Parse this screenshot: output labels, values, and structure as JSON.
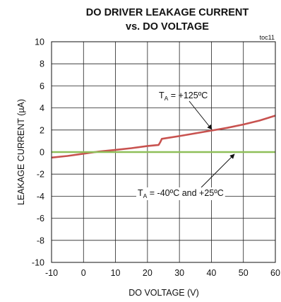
{
  "chart_data": {
    "type": "line",
    "title_line1": "DO DRIVER LEAKAGE CURRENT",
    "title_line2": "vs. DO VOLTAGE",
    "tag": "toc11",
    "xlabel": "DO VOLTAGE (V)",
    "ylabel": "LEAKAGE CURRENT (µA)",
    "xlim": [
      -10,
      60
    ],
    "ylim": [
      -10,
      10
    ],
    "xticks": [
      "-10",
      "0",
      "10",
      "20",
      "30",
      "40",
      "50",
      "60"
    ],
    "yticks": [
      "10",
      "8",
      "6",
      "4",
      "2",
      "0",
      "-2",
      "-4",
      "-6",
      "-8",
      "-10"
    ],
    "grid": true,
    "series": [
      {
        "label_main": "T",
        "label_sub": "A",
        "label_rest": " = +125ºC",
        "color": "#c8524f",
        "x": [
          -10,
          -5,
          0,
          5,
          10,
          15,
          20,
          23.5,
          24,
          24.5,
          30,
          35,
          40,
          45,
          50,
          55,
          60
        ],
        "y": [
          -0.5,
          -0.35,
          -0.15,
          0.05,
          0.2,
          0.35,
          0.55,
          0.65,
          0.9,
          1.2,
          1.45,
          1.7,
          1.95,
          2.2,
          2.5,
          2.85,
          3.3
        ]
      },
      {
        "label_main": "T",
        "label_sub": "A",
        "label_rest": " = -40ºC and +25ºC",
        "color": "#8fbf5a",
        "x": [
          -10,
          60
        ],
        "y": [
          0,
          0
        ]
      }
    ]
  }
}
